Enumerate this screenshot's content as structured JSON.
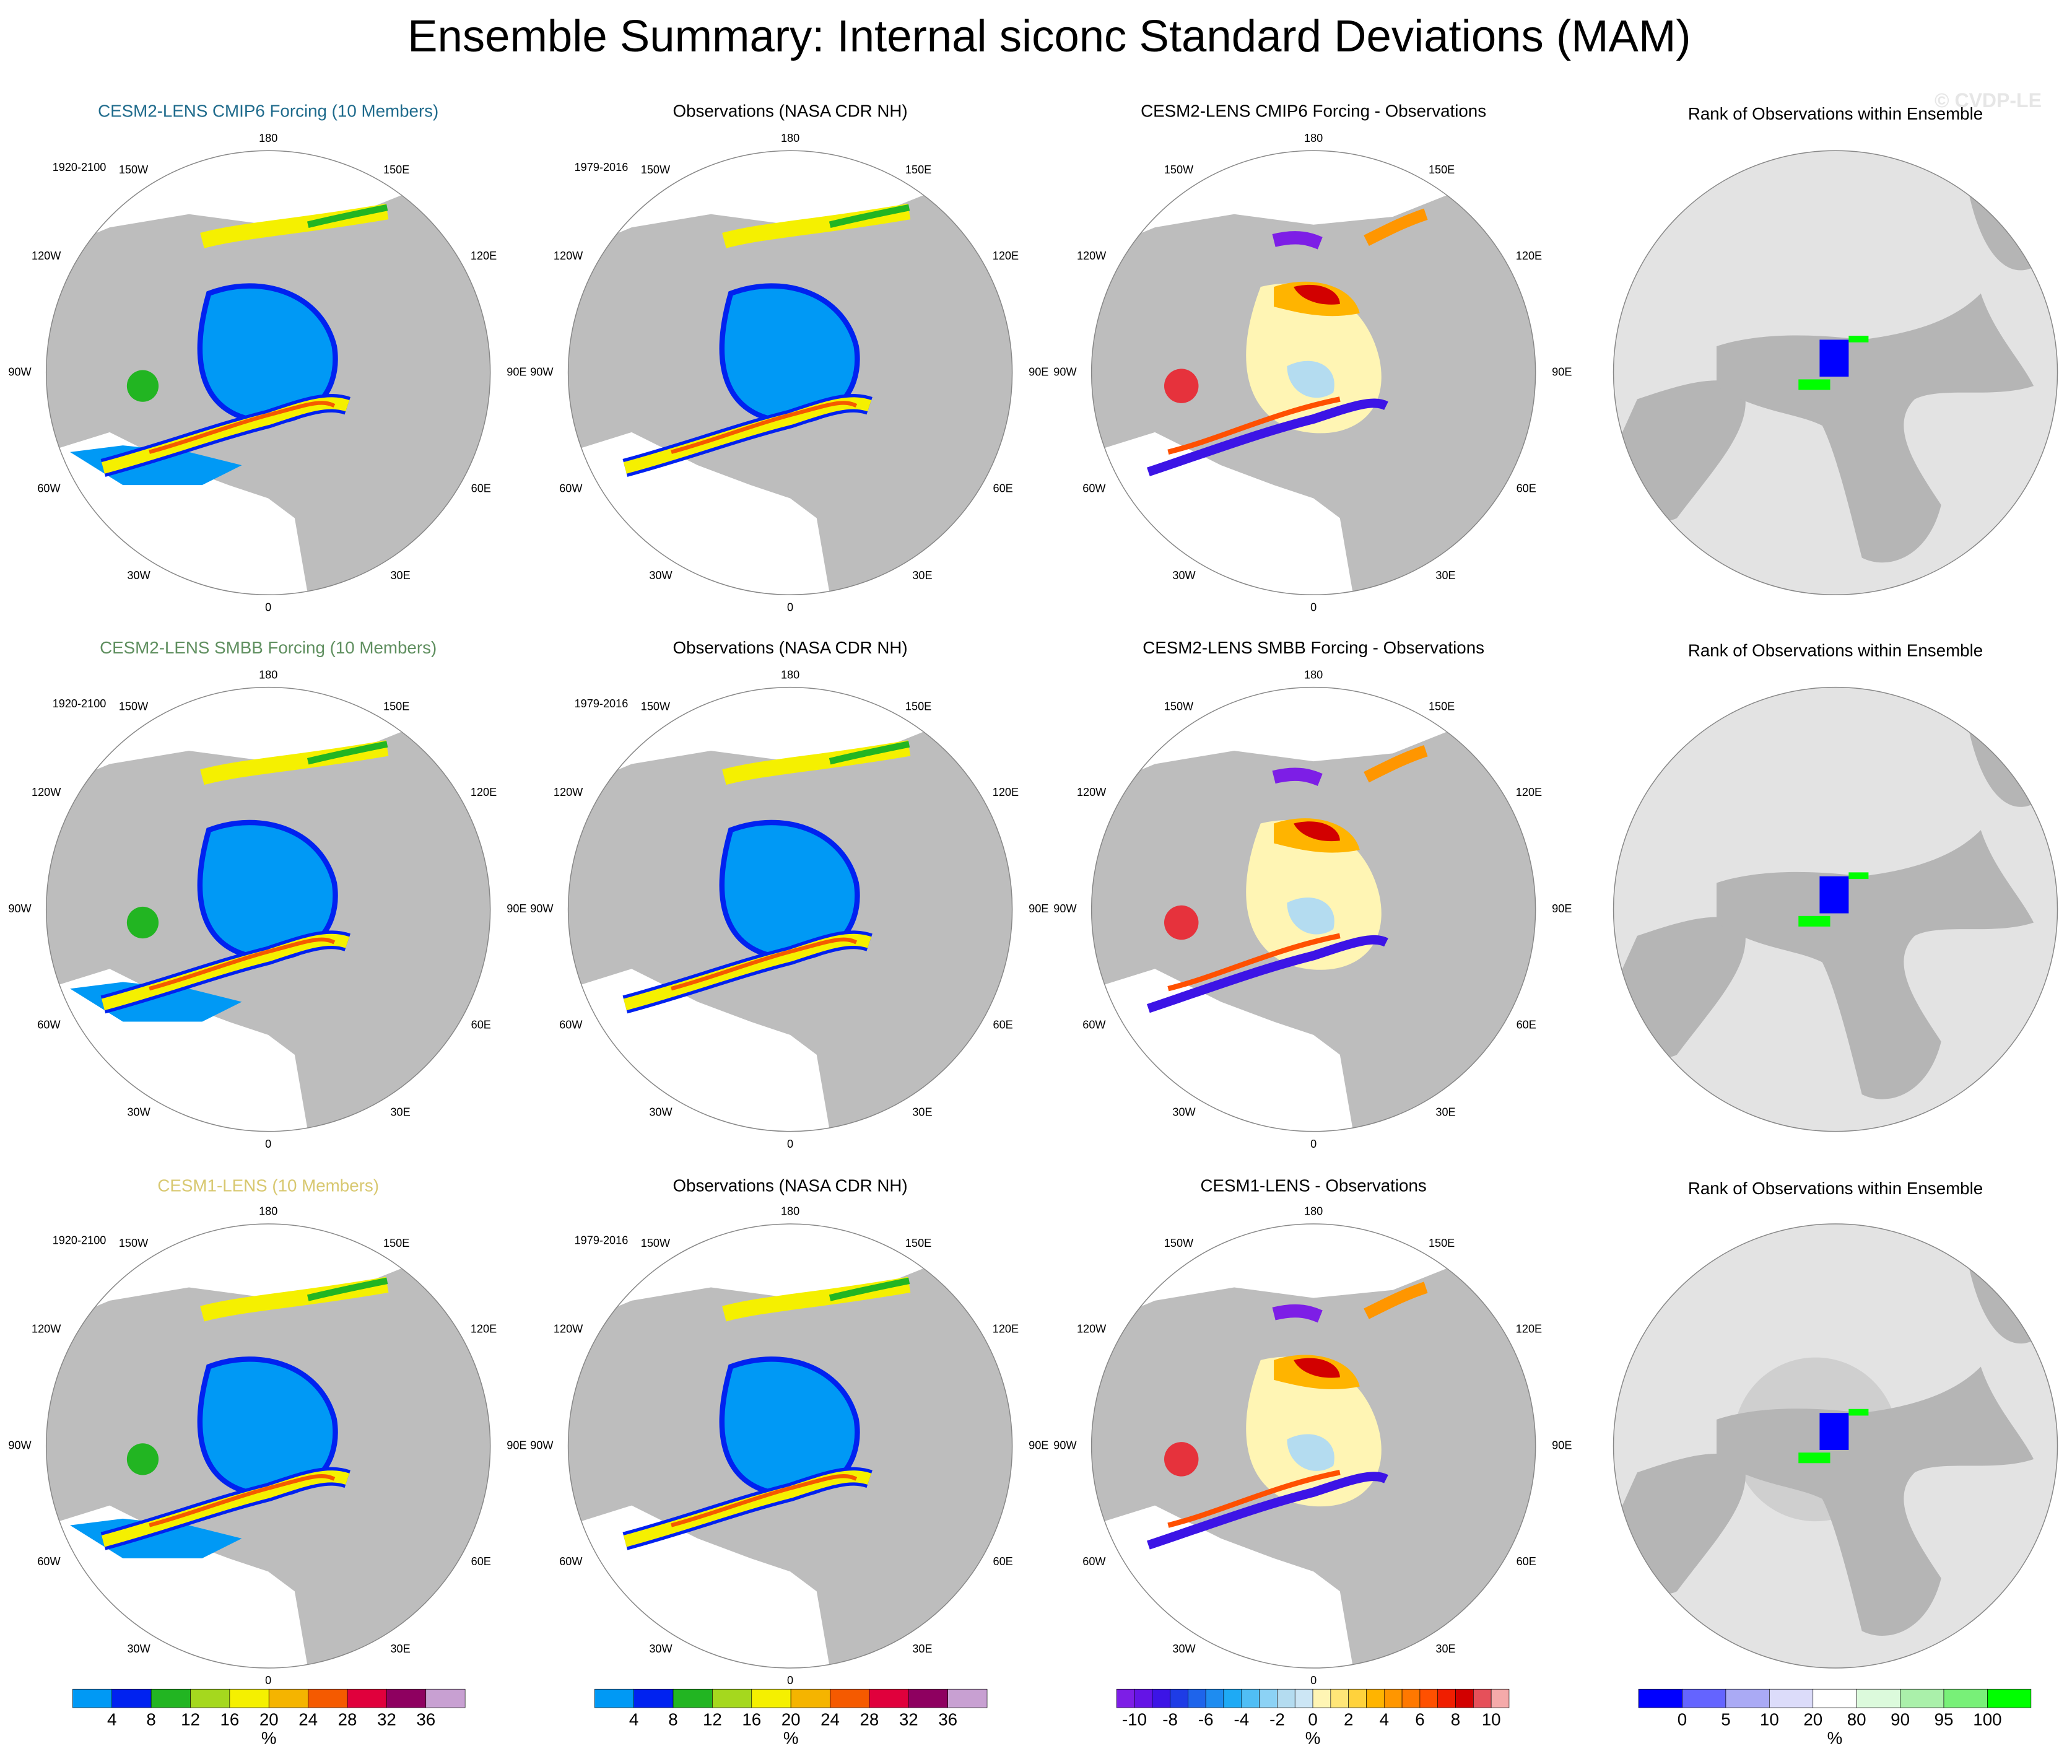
{
  "title": "Ensemble Summary: Internal siconc Standard Deviations (MAM)",
  "watermark": "© CVDP-LE",
  "longitude_labels": [
    "180",
    "150W",
    "150E",
    "120W",
    "120E",
    "90W",
    "90E",
    "60W",
    "60E",
    "30W",
    "30E",
    "0"
  ],
  "rows": [
    {
      "panels": [
        {
          "title": "CESM2-LENS CMIP6 Forcing (10 Members)",
          "title_color": "#1f6b8c",
          "period": "1920-2100"
        },
        {
          "title": "Observations (NASA CDR NH)",
          "title_color": "#000000",
          "period": "1979-2016"
        },
        {
          "title": "CESM2-LENS CMIP6 Forcing - Observations",
          "title_color": "#000000"
        },
        {
          "title": "Rank of Observations within Ensemble",
          "title_color": "#000000"
        }
      ]
    },
    {
      "panels": [
        {
          "title": "CESM2-LENS SMBB Forcing (10 Members)",
          "title_color": "#5f8f5f",
          "period": "1920-2100"
        },
        {
          "title": "Observations (NASA CDR NH)",
          "title_color": "#000000",
          "period": "1979-2016"
        },
        {
          "title": "CESM2-LENS SMBB Forcing - Observations",
          "title_color": "#000000"
        },
        {
          "title": "Rank of Observations within Ensemble",
          "title_color": "#000000"
        }
      ]
    },
    {
      "panels": [
        {
          "title": "CESM1-LENS (10 Members)",
          "title_color": "#d8c870",
          "period": "1920-2100"
        },
        {
          "title": "Observations (NASA CDR NH)",
          "title_color": "#000000",
          "period": "1979-2016"
        },
        {
          "title": "CESM1-LENS - Observations",
          "title_color": "#000000"
        },
        {
          "title": "Rank of Observations within Ensemble",
          "title_color": "#000000"
        }
      ]
    }
  ],
  "colorbars": [
    {
      "unit": "%",
      "ticks": [
        4,
        8,
        12,
        16,
        20,
        24,
        28,
        32,
        36
      ],
      "colors": [
        "#0099f5",
        "#0022f0",
        "#22b522",
        "#a5d81e",
        "#f5f000",
        "#f5b400",
        "#f55a00",
        "#e0003c",
        "#8e0060",
        "#c8a0d2"
      ]
    },
    {
      "unit": "%",
      "ticks": [
        4,
        8,
        12,
        16,
        20,
        24,
        28,
        32,
        36
      ],
      "colors": [
        "#0099f5",
        "#0022f0",
        "#22b522",
        "#a5d81e",
        "#f5f000",
        "#f5b400",
        "#f55a00",
        "#e0003c",
        "#8e0060",
        "#c8a0d2"
      ]
    },
    {
      "unit": "%",
      "ticks": [
        -10,
        -8,
        -6,
        -4,
        -2,
        0,
        2,
        4,
        6,
        8,
        10
      ],
      "colors": [
        "#7d1ee6",
        "#6414e6",
        "#3c14e6",
        "#1e3ce6",
        "#1e64eb",
        "#1e8cf0",
        "#1eaaf5",
        "#50bef5",
        "#8cd2f5",
        "#b4dcf0",
        "#cce6f5",
        "#fff5b4",
        "#ffe678",
        "#ffd23c",
        "#ffb400",
        "#ff9600",
        "#ff7800",
        "#ff5000",
        "#f01e00",
        "#d20000",
        "#e6505a",
        "#f5aaaa"
      ]
    },
    {
      "unit": "%",
      "ticks": [
        0,
        5,
        10,
        20,
        80,
        90,
        95,
        100
      ],
      "colors": [
        "#0000ff",
        "#6464ff",
        "#aaaaf5",
        "#dcdcfa",
        "#ffffff",
        "#dcfadc",
        "#aaf0aa",
        "#78f078",
        "#00ff00"
      ]
    }
  ]
}
